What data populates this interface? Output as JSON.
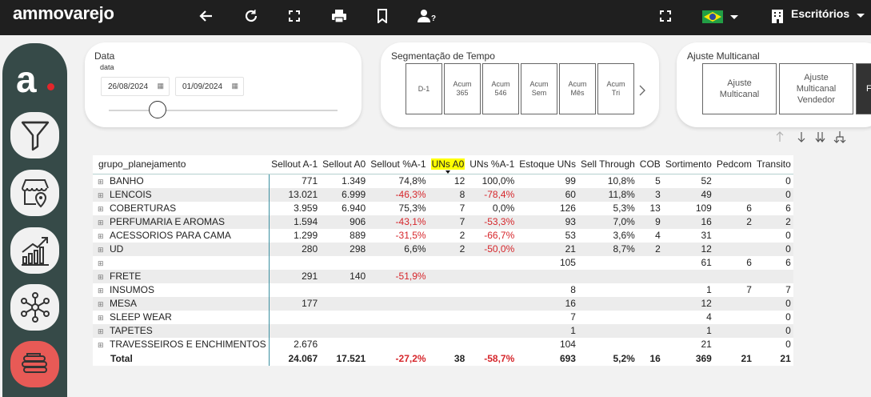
{
  "app": {
    "logo": "ammovarejo",
    "location_label": "Escritórios"
  },
  "topbar_icons": [
    "back-arrow-icon",
    "refresh-icon",
    "fullscreen-icon",
    "print-icon",
    "bookmark-icon",
    "user-help-icon"
  ],
  "sidebar": {
    "logo_letter": "a",
    "items": [
      "filter-icon",
      "store-map-icon",
      "growth-chart-icon",
      "network-icon",
      "stack-icon"
    ]
  },
  "filters": {
    "data": {
      "title": "Data",
      "label": "data",
      "start": "26/08/2024",
      "end": "01/09/2024"
    },
    "segmentacao": {
      "title": "Segmentação de Tempo",
      "buttons": [
        "D-1",
        "Acum\n365",
        "Acum\n546",
        "Acum\nSem",
        "Acum\nMês",
        "Acum\nTri"
      ]
    },
    "ajuste": {
      "title": "Ajuste Multicanal",
      "buttons": [
        "Ajuste\nMulticanal",
        "Ajuste\nMulticanal\nVendedor",
        "F"
      ]
    }
  },
  "table": {
    "headers": [
      "grupo_planejamento",
      "Sellout A-1",
      "Sellout A0",
      "Sellout %A-1",
      "UNs A0",
      "UNs %A-1",
      "Estoque UNs",
      "Sell Through",
      "COB",
      "Sortimento",
      "Pedcom",
      "Transito"
    ],
    "rows": [
      [
        "BANHO",
        "771",
        "1.349",
        "74,8%",
        "12",
        "100,0%",
        "99",
        "10,8%",
        "5",
        "52",
        "",
        "0"
      ],
      [
        "LENCOIS",
        "13.021",
        "6.999",
        "-46,3%",
        "8",
        "-78,4%",
        "60",
        "11,8%",
        "3",
        "49",
        "",
        "0"
      ],
      [
        "COBERTURAS",
        "3.959",
        "6.940",
        "75,3%",
        "7",
        "0,0%",
        "126",
        "5,3%",
        "13",
        "109",
        "6",
        "6"
      ],
      [
        "PERFUMARIA E AROMAS",
        "1.594",
        "906",
        "-43,1%",
        "7",
        "-53,3%",
        "93",
        "7,0%",
        "9",
        "16",
        "2",
        "2"
      ],
      [
        "ACESSORIOS PARA CAMA",
        "1.299",
        "889",
        "-31,5%",
        "2",
        "-66,7%",
        "53",
        "3,6%",
        "4",
        "31",
        "",
        "0"
      ],
      [
        "UD",
        "280",
        "298",
        "6,6%",
        "2",
        "-50,0%",
        "21",
        "8,7%",
        "2",
        "12",
        "",
        "0"
      ],
      [
        "",
        "",
        "",
        "",
        "",
        "",
        "105",
        "",
        "",
        "61",
        "6",
        "6"
      ],
      [
        "FRETE",
        "291",
        "140",
        "-51,9%",
        "",
        "",
        "",
        "",
        "",
        "",
        "",
        ""
      ],
      [
        "INSUMOS",
        "",
        "",
        "",
        "",
        "",
        "8",
        "",
        "",
        "1",
        "7",
        "7"
      ],
      [
        "MESA",
        "177",
        "",
        "",
        "",
        "",
        "16",
        "",
        "",
        "12",
        "",
        "0"
      ],
      [
        "SLEEP WEAR",
        "",
        "",
        "",
        "",
        "",
        "7",
        "",
        "",
        "4",
        "",
        "0"
      ],
      [
        "TAPETES",
        "",
        "",
        "",
        "",
        "",
        "1",
        "",
        "",
        "1",
        "",
        "0"
      ],
      [
        "TRAVESSEIROS E ENCHIMENTOS",
        "2.676",
        "",
        "",
        "",
        "",
        "104",
        "",
        "",
        "21",
        "",
        "0"
      ]
    ],
    "total": [
      "Total",
      "24.067",
      "17.521",
      "-27,2%",
      "38",
      "-58,7%",
      "693",
      "5,2%",
      "16",
      "369",
      "21",
      "21"
    ]
  },
  "colors": {
    "topbar": "#1f1f1f",
    "sidebar": "#364a48",
    "negative": "#d6262b",
    "highlight": "#ffff00",
    "active_button": "#e85a56"
  }
}
